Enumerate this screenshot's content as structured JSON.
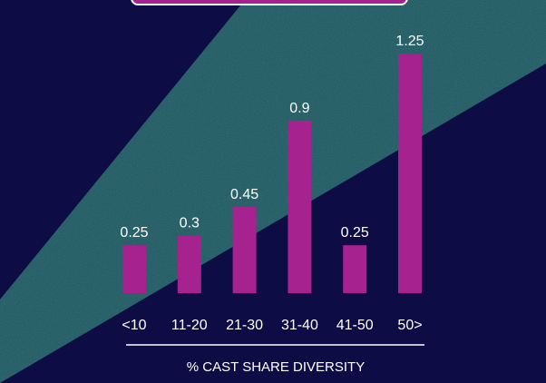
{
  "chart_data": {
    "type": "bar",
    "categories": [
      "<10",
      "11-20",
      "21-30",
      "31-40",
      "41-50",
      "50>"
    ],
    "values": [
      0.25,
      0.3,
      0.45,
      0.9,
      0.25,
      1.25
    ],
    "data_labels": [
      "0.25",
      "0.3",
      "0.45",
      "0.9",
      "0.25",
      "1.25"
    ],
    "xlabel": "% CAST SHARE DIVERSITY",
    "ylabel": "",
    "ylim": [
      0,
      1.25
    ],
    "grid": false,
    "colors": {
      "background": "#0e0c45",
      "beam": "#1c5962",
      "bar": "#a6228f",
      "text": "#ffffff",
      "banner": "#a6228f"
    }
  }
}
